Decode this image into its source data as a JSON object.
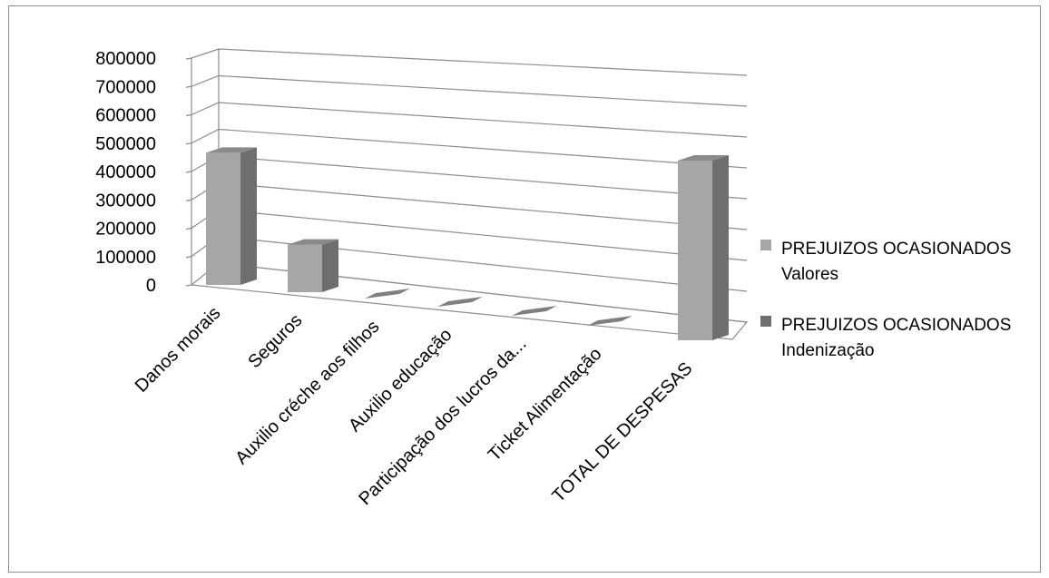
{
  "chart_data": {
    "type": "bar",
    "title": "",
    "categories": [
      "Danos morais",
      "Seguros",
      "Auxilio créche aos filhos",
      "Auxilio educação",
      "Participação dos lucros da...",
      "Ticket Alimentação",
      "TOTAL DE DESPESAS"
    ],
    "series": [
      {
        "name": [
          "PREJUIZOS OCASIONADOS",
          "Valores"
        ],
        "values": [
          500000,
          180000,
          0,
          0,
          0,
          0,
          680000
        ]
      },
      {
        "name": [
          "PREJUIZOS OCASIONADOS",
          "Indenização"
        ],
        "values": [
          0,
          0,
          0,
          0,
          0,
          0,
          0
        ]
      }
    ],
    "yticks": [
      "0",
      "100000",
      "200000",
      "300000",
      "400000",
      "500000",
      "600000",
      "700000",
      "800000"
    ],
    "ylim": [
      0,
      800000
    ],
    "grid": true,
    "legend": "right",
    "colors": {
      "valores": "#a6a6a6",
      "indenizacao": "#6e6e6e",
      "grid": "#8c8c8c"
    }
  }
}
